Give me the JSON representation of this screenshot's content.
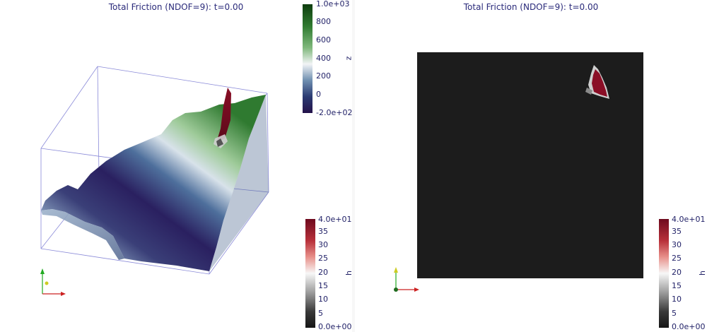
{
  "left_view": {
    "title": "Total Friction (NDOF=9): t=0.00",
    "z_colorbar": {
      "label": "z",
      "ticks": [
        "1.0e+03",
        "800",
        "600",
        "400",
        "200",
        "0",
        "-2.0e+02"
      ],
      "colors": [
        "#0e3d0e",
        "#2f7a30",
        "#7fb87c",
        "#f2f4f6",
        "#6f8fb0",
        "#2a3a72",
        "#24124a"
      ]
    },
    "h_colorbar": {
      "label": "h",
      "ticks": [
        "4.0e+01",
        "35",
        "30",
        "25",
        "20",
        "15",
        "10",
        "5",
        "0.0e+00"
      ],
      "colors": [
        "#6e0a1e",
        "#b8303a",
        "#e8908a",
        "#f7f7f7",
        "#9a9a9a",
        "#3a3a3a",
        "#151515"
      ]
    }
  },
  "right_view": {
    "title": "Total Friction (NDOF=9): t=0.00",
    "h_colorbar": {
      "label": "h",
      "ticks": [
        "4.0e+01",
        "35",
        "30",
        "25",
        "20",
        "15",
        "10",
        "5",
        "0.0e+00"
      ],
      "colors": [
        "#6e0a1e",
        "#b8303a",
        "#e8908a",
        "#f7f7f7",
        "#9a9a9a",
        "#3a3a3a",
        "#151515"
      ]
    }
  },
  "colors": {
    "title_text": "#2a2a7a",
    "bbox_lines": "#8a8ad8",
    "dark_plane": "#1c1c1c",
    "axis_x": "#cc2222",
    "axis_y": "#22aa22",
    "axis_z": "#cccc22"
  }
}
